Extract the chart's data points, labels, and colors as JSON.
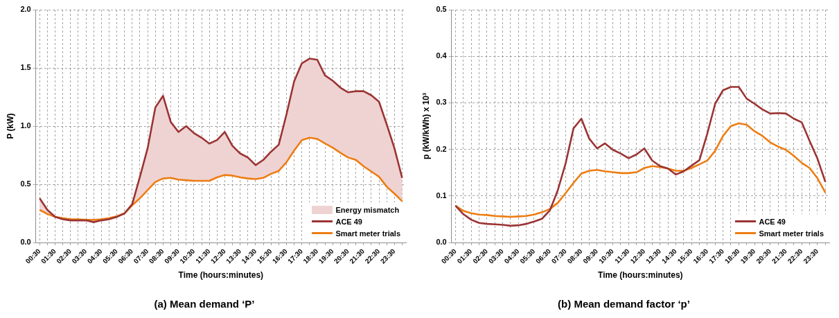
{
  "chart_data": [
    {
      "type": "line",
      "title": "(a) Mean demand ‘P’",
      "xlabel": "Time (hours:minutes)",
      "ylabel": "P (kW)",
      "categories": [
        "00:30",
        null,
        "01:30",
        null,
        "02:30",
        null,
        "03:30",
        null,
        "04:30",
        null,
        "05:30",
        null,
        "06:30",
        null,
        "07:30",
        null,
        "08:30",
        null,
        "09:30",
        null,
        "10:30",
        null,
        "11:30",
        null,
        "12:30",
        null,
        "13:30",
        null,
        "14:30",
        null,
        "15:30",
        null,
        "16:30",
        null,
        "17:30",
        null,
        "18:30",
        null,
        "19:30",
        null,
        "20:30",
        null,
        "21:30",
        null,
        "22:30",
        null,
        "23:30",
        null
      ],
      "series": [
        {
          "name": "Energy mismatch",
          "type": "area",
          "color": "#efd3d3",
          "lower": [
            0.28,
            0.245,
            0.22,
            0.21,
            0.2,
            0.2,
            0.195,
            0.195,
            0.2,
            0.21,
            0.225,
            0.25,
            0.32,
            0.38,
            0.45,
            0.52,
            0.55,
            0.555,
            0.54,
            0.535,
            0.53,
            0.53,
            0.53,
            0.56,
            0.58,
            0.575,
            0.56,
            0.55,
            0.545,
            0.555,
            0.59,
            0.615,
            0.69,
            0.79,
            0.88,
            0.9,
            0.89,
            0.85,
            0.815,
            0.77,
            0.73,
            0.71,
            0.655,
            0.61,
            0.565,
            0.48,
            0.42,
            0.355
          ],
          "values": [
            null,
            null,
            null,
            null,
            null,
            null,
            null,
            null,
            null,
            null,
            null,
            null,
            null,
            null,
            null,
            null,
            null,
            null,
            null,
            null,
            null,
            null,
            null,
            null,
            null,
            null,
            null,
            null,
            null,
            null,
            null,
            null,
            null,
            null,
            null,
            null,
            null,
            null,
            null,
            null,
            null,
            null,
            null,
            null,
            null,
            null,
            null,
            null
          ],
          "upper": [
            0.38,
            0.28,
            0.22,
            0.2,
            0.19,
            0.19,
            0.19,
            0.175,
            0.19,
            0.2,
            0.22,
            0.25,
            0.33,
            0.565,
            0.81,
            1.16,
            1.26,
            1.035,
            0.95,
            1.0,
            0.94,
            0.9,
            0.85,
            0.88,
            0.95,
            0.83,
            0.765,
            0.73,
            0.665,
            0.71,
            0.78,
            0.84,
            1.1,
            1.385,
            1.54,
            1.58,
            1.57,
            1.435,
            1.39,
            1.33,
            1.29,
            1.3,
            1.3,
            1.265,
            1.21,
            1.015,
            0.81,
            0.555
          ]
        },
        {
          "name": "ACE 49",
          "color": "#9b3433",
          "values": [
            0.38,
            0.28,
            0.22,
            0.2,
            0.19,
            0.19,
            0.19,
            0.175,
            0.19,
            0.2,
            0.22,
            0.25,
            0.33,
            0.565,
            0.81,
            1.16,
            1.26,
            1.035,
            0.95,
            1.0,
            0.94,
            0.9,
            0.85,
            0.88,
            0.95,
            0.83,
            0.765,
            0.73,
            0.665,
            0.71,
            0.78,
            0.84,
            1.1,
            1.385,
            1.54,
            1.58,
            1.57,
            1.435,
            1.39,
            1.33,
            1.29,
            1.3,
            1.3,
            1.265,
            1.21,
            1.015,
            0.81,
            0.555
          ]
        },
        {
          "name": "Smart meter trials",
          "color": "#ed7d12",
          "values": [
            0.28,
            0.245,
            0.22,
            0.21,
            0.2,
            0.2,
            0.195,
            0.195,
            0.2,
            0.21,
            0.225,
            0.25,
            0.32,
            0.38,
            0.45,
            0.52,
            0.55,
            0.555,
            0.54,
            0.535,
            0.53,
            0.53,
            0.53,
            0.56,
            0.58,
            0.575,
            0.56,
            0.55,
            0.545,
            0.555,
            0.59,
            0.615,
            0.69,
            0.79,
            0.88,
            0.9,
            0.89,
            0.85,
            0.815,
            0.77,
            0.73,
            0.71,
            0.655,
            0.61,
            0.565,
            0.48,
            0.42,
            0.355
          ]
        }
      ],
      "ylim": [
        0,
        2
      ],
      "yticks": [
        {
          "value": 0,
          "label": "0.0"
        },
        0.5,
        {
          "value": 1,
          "label": "1.0"
        },
        1.5,
        {
          "value": 2,
          "label": "2.0"
        }
      ],
      "grid": true,
      "legend": "bottom right",
      "marker": "none"
    },
    {
      "type": "line",
      "title": "(b) Mean demand factor ‘p’",
      "xlabel": "Time (hours:minutes)",
      "ylabel": "p (kW/kWh) x 10³",
      "categories": [
        "00:30",
        null,
        "01:30",
        null,
        "02:30",
        null,
        "03:30",
        null,
        "04:30",
        null,
        "05:30",
        null,
        "06:30",
        null,
        "07:30",
        null,
        "08:30",
        null,
        "09:30",
        null,
        "10:30",
        null,
        "11:30",
        null,
        "12:30",
        null,
        "13:30",
        null,
        "14:30",
        null,
        "15:30",
        null,
        "16:30",
        null,
        "17:30",
        null,
        "18:30",
        null,
        "19:30",
        null,
        "20:30",
        null,
        "21:30",
        null,
        "22:30",
        null,
        "23:30",
        null
      ],
      "series": [
        {
          "name": "ACE 49",
          "color": "#9b3433",
          "values": [
            0.079,
            0.061,
            0.049,
            0.042,
            0.04,
            0.039,
            0.038,
            0.036,
            0.037,
            0.04,
            0.045,
            0.051,
            0.069,
            0.112,
            0.17,
            0.245,
            0.266,
            0.223,
            0.202,
            0.213,
            0.199,
            0.191,
            0.181,
            0.189,
            0.202,
            0.176,
            0.164,
            0.159,
            0.146,
            0.153,
            0.165,
            0.177,
            0.234,
            0.298,
            0.327,
            0.334,
            0.334,
            0.309,
            0.298,
            0.286,
            0.277,
            0.278,
            0.277,
            0.266,
            0.258,
            0.218,
            0.18,
            0.13
          ]
        },
        {
          "name": "Smart meter trials",
          "color": "#ed7d12",
          "values": [
            0.079,
            0.068,
            0.063,
            0.06,
            0.059,
            0.057,
            0.056,
            0.055,
            0.056,
            0.057,
            0.06,
            0.065,
            0.072,
            0.085,
            0.106,
            0.128,
            0.148,
            0.154,
            0.156,
            0.153,
            0.151,
            0.149,
            0.149,
            0.151,
            0.16,
            0.164,
            0.162,
            0.159,
            0.154,
            0.154,
            0.16,
            0.168,
            0.176,
            0.197,
            0.229,
            0.25,
            0.256,
            0.253,
            0.239,
            0.229,
            0.215,
            0.206,
            0.199,
            0.186,
            0.171,
            0.16,
            0.138,
            0.107
          ]
        }
      ],
      "ylim": [
        0,
        0.5
      ],
      "yticks": [
        {
          "value": 0,
          "label": "0.0"
        },
        0.1,
        0.2,
        0.3,
        0.4,
        0.5
      ],
      "grid": true,
      "legend": "bottom right",
      "marker": "none"
    }
  ]
}
